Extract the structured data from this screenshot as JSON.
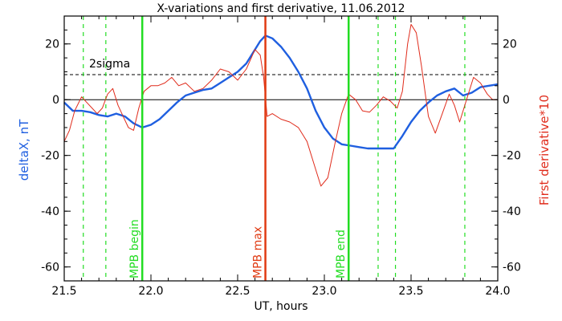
{
  "chart_data": {
    "type": "line",
    "title": "X-variations and first derivative, 11.06.2012",
    "xlabel": "UT, hours",
    "ylabel_left": "deltaX, nT",
    "ylabel_right": "First derivative*10",
    "xlim": [
      21.5,
      24.0
    ],
    "ylim": [
      -65,
      30
    ],
    "x_ticks": [
      "21.5",
      "22.0",
      "22.5",
      "23.0",
      "23.5",
      "24.0"
    ],
    "y_ticks": [
      "20",
      "0",
      "-20",
      "-40",
      "-60"
    ],
    "y_ticks_right": [
      "20",
      "0",
      "-20",
      "-40",
      "-60"
    ],
    "colors": {
      "deltaX": "#1f5fe0",
      "derivative": "#e02c1c",
      "mpb_boundary": "#22dd22",
      "mpb_max": "#e03a12",
      "dashed_marker": "#22dd22"
    },
    "sigma_label": "2sigma",
    "sigma_level": 9,
    "zero_level": 0,
    "dashed_verticals": [
      21.61,
      21.74,
      23.31,
      23.41,
      23.81
    ],
    "events": [
      {
        "x": 21.95,
        "label": "MPB begin",
        "kind": "boundary"
      },
      {
        "x": 22.66,
        "label": "MPB max",
        "kind": "max"
      },
      {
        "x": 23.14,
        "label": "MPB end",
        "kind": "boundary"
      }
    ],
    "series": [
      {
        "key": "deltaX",
        "x": [
          21.5,
          21.55,
          21.6,
          21.65,
          21.7,
          21.75,
          21.8,
          21.85,
          21.9,
          21.95,
          22.0,
          22.05,
          22.1,
          22.15,
          22.2,
          22.25,
          22.3,
          22.35,
          22.4,
          22.45,
          22.5,
          22.55,
          22.6,
          22.63,
          22.66,
          22.7,
          22.75,
          22.8,
          22.85,
          22.9,
          22.95,
          23.0,
          23.05,
          23.1,
          23.15,
          23.2,
          23.25,
          23.3,
          23.35,
          23.4,
          23.45,
          23.5,
          23.55,
          23.6,
          23.65,
          23.7,
          23.75,
          23.8,
          23.85,
          23.9,
          23.95,
          24.0
        ],
        "y": [
          -1,
          -4,
          -4,
          -4.5,
          -5.5,
          -6,
          -5,
          -6,
          -8.5,
          -10,
          -9,
          -7,
          -4,
          -1,
          1.5,
          2.5,
          3.5,
          4,
          6,
          8,
          10,
          13,
          18,
          21,
          23,
          22,
          19,
          15,
          10,
          4,
          -4,
          -10,
          -14,
          -16,
          -16.5,
          -17,
          -17.5,
          -17.5,
          -17.5,
          -17.5,
          -13,
          -8,
          -4,
          -1,
          1.5,
          3,
          4,
          1.5,
          2.5,
          4.5,
          5,
          5.5
        ]
      },
      {
        "key": "derivative",
        "x": [
          21.5,
          21.53,
          21.56,
          21.6,
          21.63,
          21.66,
          21.69,
          21.72,
          21.75,
          21.78,
          21.81,
          21.84,
          21.87,
          21.9,
          21.93,
          21.96,
          22.0,
          22.04,
          22.08,
          22.12,
          22.16,
          22.2,
          22.25,
          22.3,
          22.35,
          22.4,
          22.45,
          22.5,
          22.55,
          22.6,
          22.63,
          22.65,
          22.67,
          22.7,
          22.75,
          22.8,
          22.85,
          22.9,
          22.95,
          22.98,
          23.02,
          23.06,
          23.1,
          23.14,
          23.18,
          23.22,
          23.26,
          23.3,
          23.34,
          23.38,
          23.42,
          23.45,
          23.48,
          23.5,
          23.53,
          23.56,
          23.6,
          23.64,
          23.68,
          23.72,
          23.75,
          23.78,
          23.82,
          23.86,
          23.9,
          23.94,
          23.97,
          24.0
        ],
        "y": [
          -15,
          -11,
          -4,
          1,
          -1,
          -3,
          -5,
          -3,
          2,
          4,
          -2,
          -6,
          -10,
          -11,
          -3,
          3,
          5,
          5,
          6,
          8,
          5,
          6,
          3,
          4,
          7,
          11,
          10,
          7,
          11,
          18,
          16,
          8,
          -6,
          -5,
          -7,
          -8,
          -10,
          -15,
          -25,
          -31,
          -28,
          -16,
          -5,
          2,
          0,
          -4,
          -4.5,
          -2,
          1,
          -0.5,
          -3,
          3,
          20,
          27,
          24,
          12,
          -6,
          -12,
          -5,
          2,
          -2,
          -8,
          0,
          8,
          6,
          2,
          0,
          0
        ]
      }
    ]
  }
}
